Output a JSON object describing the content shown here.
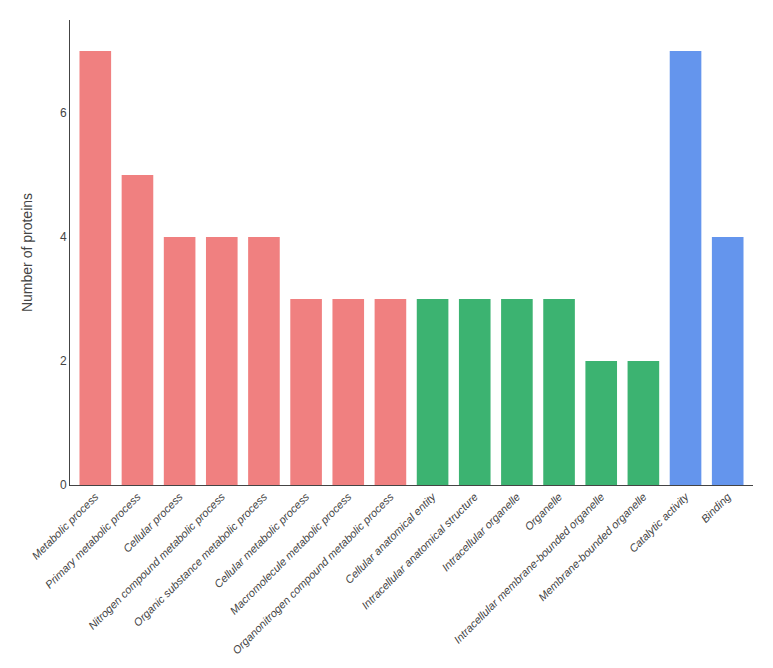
{
  "chart_data": {
    "type": "bar",
    "categories": [
      "Metabolic process",
      "Primary metabolic process",
      "Cellular process",
      "Nitrogen compound metabolic process",
      "Organic substance metabolic process",
      "Cellular metabolic process",
      "Macromolecule metabolic process",
      "Organonitrogen compound metabolic process",
      "Cellular anatomical entity",
      "Intracellular anatomical structure",
      "Intracellular organelle",
      "Organelle",
      "Intracellular membrane-bounded organelle",
      "Membrane-bounded organelle",
      "Catalytic activity",
      "Binding"
    ],
    "values": [
      7,
      5,
      4,
      4,
      4,
      3,
      3,
      3,
      3,
      3,
      3,
      3,
      2,
      2,
      7,
      4
    ],
    "colors": [
      "#F08080",
      "#F08080",
      "#F08080",
      "#F08080",
      "#F08080",
      "#F08080",
      "#F08080",
      "#F08080",
      "#3CB371",
      "#3CB371",
      "#3CB371",
      "#3CB371",
      "#3CB371",
      "#3CB371",
      "#6495ED",
      "#6495ED"
    ],
    "ylabel": "Number of proteins",
    "ylim": [
      0,
      7.5
    ],
    "yticks": [
      0,
      2,
      4,
      6
    ],
    "grid": false
  }
}
